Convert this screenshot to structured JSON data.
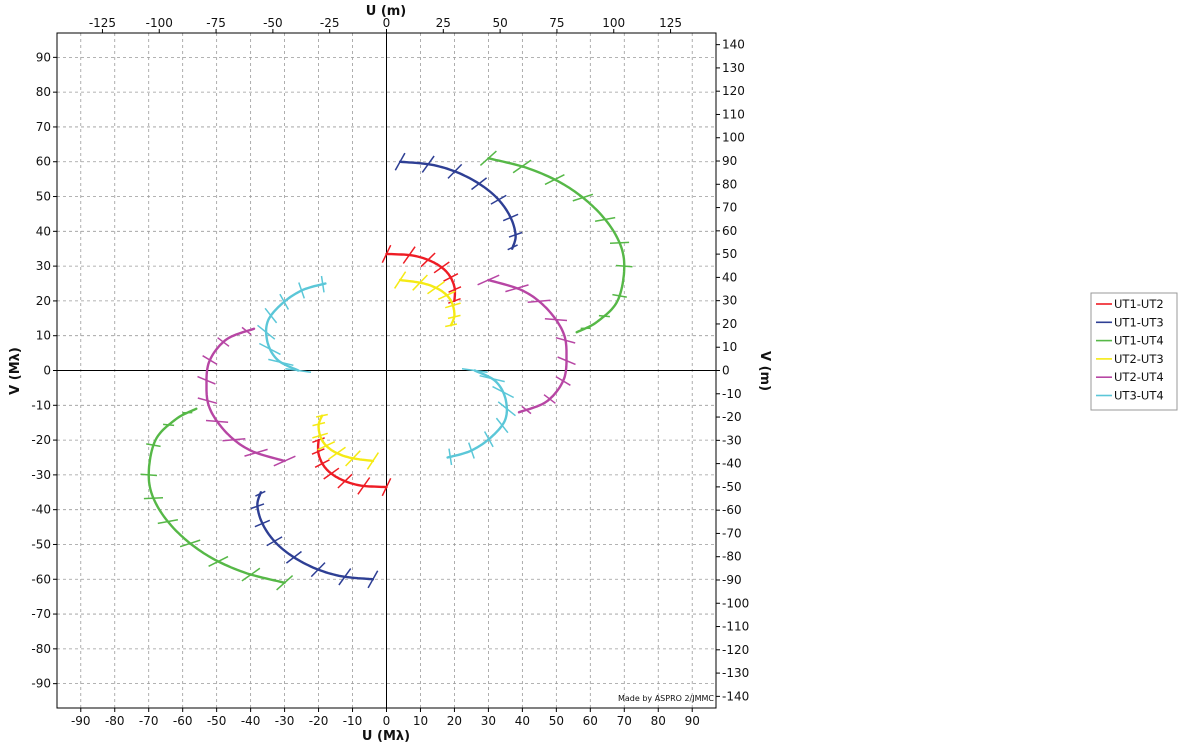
{
  "chart_data": {
    "type": "line",
    "title": "",
    "xlabel_bottom": "U (Mλ)",
    "xlabel_top": "U (m)",
    "ylabel_left": "V (Mλ)",
    "ylabel_right": "V (m)",
    "xlim": [
      -97,
      97
    ],
    "ylim": [
      -97,
      97
    ],
    "secondary_xlim_m": [
      -145,
      145
    ],
    "secondary_ylim_m": [
      -145,
      145
    ],
    "x_ticks": [
      -90,
      -80,
      -70,
      -60,
      -50,
      -40,
      -30,
      -20,
      -10,
      0,
      10,
      20,
      30,
      40,
      50,
      60,
      70,
      80,
      90
    ],
    "y_ticks": [
      -90,
      -80,
      -70,
      -60,
      -50,
      -40,
      -30,
      -20,
      -10,
      0,
      10,
      20,
      30,
      40,
      50,
      60,
      70,
      80,
      90
    ],
    "top_ticks_m": [
      -125,
      -100,
      -75,
      -50,
      -25,
      0,
      25,
      50,
      75,
      100,
      125
    ],
    "right_ticks_m": [
      -140,
      -130,
      -120,
      -110,
      -100,
      -90,
      -80,
      -70,
      -60,
      -50,
      -40,
      -30,
      -20,
      -10,
      0,
      10,
      20,
      30,
      40,
      50,
      60,
      70,
      80,
      90,
      100,
      110,
      120,
      130,
      140
    ],
    "grid": true,
    "legend_position": "right",
    "credit": "Made by ASPRO 2/JMMC",
    "series": [
      {
        "name": "UT1-UT2",
        "color": "#ee1c24",
        "points": [
          [
            0,
            33.5
          ],
          [
            8,
            33
          ],
          [
            14,
            31
          ],
          [
            18,
            28
          ],
          [
            20,
            24
          ],
          [
            20,
            20
          ]
        ]
      },
      {
        "name": "UT1-UT3",
        "color": "#2e3f94",
        "points": [
          [
            4,
            60
          ],
          [
            14,
            59
          ],
          [
            23,
            56
          ],
          [
            31,
            51
          ],
          [
            36,
            45
          ],
          [
            38,
            39
          ],
          [
            37,
            35
          ]
        ]
      },
      {
        "name": "UT1-UT4",
        "color": "#56b847",
        "points": [
          [
            30,
            61
          ],
          [
            42,
            58
          ],
          [
            53,
            53
          ],
          [
            62,
            46
          ],
          [
            68,
            38
          ],
          [
            70,
            30
          ],
          [
            68,
            20
          ],
          [
            62,
            14
          ],
          [
            56,
            11
          ]
        ]
      },
      {
        "name": "UT2-UT3",
        "color": "#f5ea14",
        "points": [
          [
            4,
            26
          ],
          [
            11,
            25
          ],
          [
            16,
            23
          ],
          [
            19,
            20
          ],
          [
            20,
            16
          ],
          [
            19,
            13
          ]
        ]
      },
      {
        "name": "UT2-UT4",
        "color": "#b746a4",
        "points": [
          [
            30,
            26
          ],
          [
            40,
            23
          ],
          [
            47,
            18
          ],
          [
            52,
            11
          ],
          [
            53,
            4
          ],
          [
            52,
            -3
          ],
          [
            47,
            -9
          ],
          [
            39,
            -12
          ]
        ]
      },
      {
        "name": "UT3-UT4",
        "color": "#5bc7d8",
        "points": [
          [
            26,
            0
          ],
          [
            32,
            -3
          ],
          [
            35,
            -8
          ],
          [
            35,
            -14
          ],
          [
            31,
            -19
          ],
          [
            25,
            -23
          ],
          [
            18,
            -25
          ]
        ]
      }
    ]
  }
}
